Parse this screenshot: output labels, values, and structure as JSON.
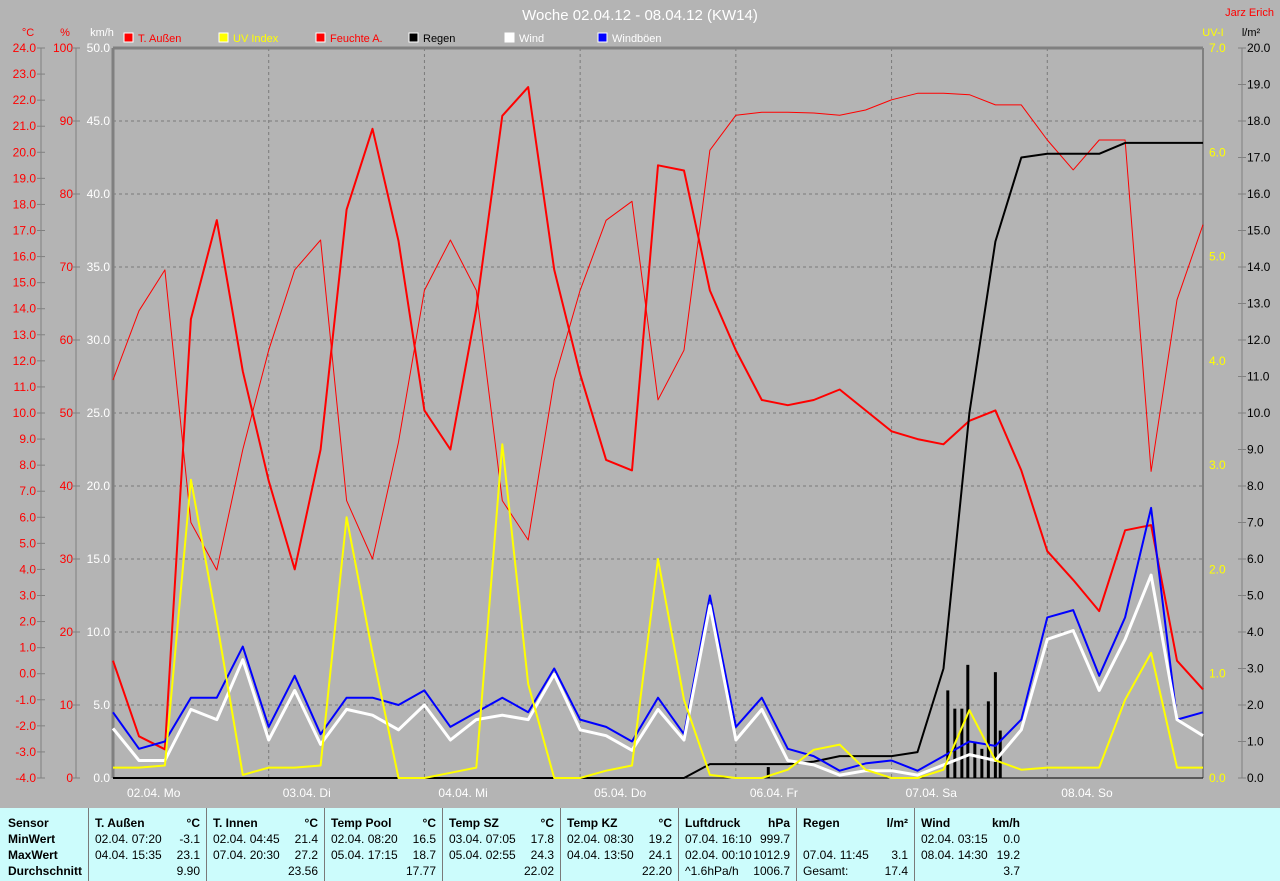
{
  "chart_data": {
    "type": "line",
    "title": "Woche 02.04.12 - 08.04.12 (KW14)",
    "author": "Jarz Erich",
    "grid": true,
    "legend_placement": "top",
    "axes": {
      "temp": {
        "unit": "°C",
        "range": [
          -4,
          24
        ],
        "step": 1,
        "side": "left",
        "color": "#ff0000"
      },
      "humidity": {
        "unit": "%",
        "range": [
          0,
          100
        ],
        "step": 10,
        "side": "left",
        "color": "#ff0000"
      },
      "wind": {
        "unit": "km/h",
        "range": [
          0,
          50
        ],
        "step": 5,
        "side": "left",
        "color": "#ffffff"
      },
      "uv": {
        "unit": "UV-I",
        "range": [
          0,
          7
        ],
        "step": 1,
        "side": "right",
        "color": "#ffff00"
      },
      "rain": {
        "unit": "l/m²",
        "range": [
          0,
          20
        ],
        "step": 1,
        "side": "right",
        "color": "#000000"
      }
    },
    "x_range": [
      "02.04. 00:00",
      "09.04. 00:00"
    ],
    "day_labels": [
      "02.04.  Mo",
      "03.04.  Di",
      "04.04.  Mi",
      "05.04.  Do",
      "06.04.  Fr",
      "07.04.  Sa",
      "08.04.  So"
    ],
    "x": [
      "02.04. 00:00",
      "02.04. 04:00",
      "02.04. 08:00",
      "02.04. 12:00",
      "02.04. 16:00",
      "02.04. 20:00",
      "03.04. 00:00",
      "03.04. 04:00",
      "03.04. 08:00",
      "03.04. 12:00",
      "03.04. 16:00",
      "03.04. 20:00",
      "04.04. 00:00",
      "04.04. 04:00",
      "04.04. 08:00",
      "04.04. 12:00",
      "04.04. 16:00",
      "04.04. 20:00",
      "05.04. 00:00",
      "05.04. 04:00",
      "05.04. 08:00",
      "05.04. 12:00",
      "05.04. 16:00",
      "05.04. 20:00",
      "06.04. 00:00",
      "06.04. 04:00",
      "06.04. 08:00",
      "06.04. 12:00",
      "06.04. 16:00",
      "06.04. 20:00",
      "07.04. 00:00",
      "07.04. 04:00",
      "07.04. 08:00",
      "07.04. 12:00",
      "07.04. 16:00",
      "07.04. 20:00",
      "08.04. 00:00",
      "08.04. 04:00",
      "08.04. 08:00",
      "08.04. 12:00",
      "08.04. 16:00",
      "08.04. 20:00",
      "09.04. 00:00"
    ],
    "series": [
      {
        "name": "Feuchte A.",
        "axis": "humidity",
        "color": "#ff0000",
        "width": 1,
        "values": [
          54.5,
          64,
          69.6,
          35,
          28.5,
          45,
          58.6,
          69.6,
          73.7,
          38,
          30,
          46,
          66.8,
          73.7,
          66.8,
          38,
          32.6,
          54.5,
          66.8,
          76.4,
          79,
          51.8,
          58.6,
          86,
          90.8,
          91.2,
          91.2,
          91.1,
          90.8,
          91.5,
          92.9,
          93.8,
          93.8,
          93.6,
          92.2,
          92.2,
          87.4,
          83.3,
          87.4,
          87.4,
          42,
          65.5,
          75.8
        ]
      },
      {
        "name": "T. Außen",
        "axis": "temp",
        "color": "#ff0000",
        "width": 2,
        "values": [
          0.5,
          -2.4,
          -2.9,
          13.6,
          17.4,
          11.6,
          7.4,
          4.0,
          8.6,
          17.8,
          20.9,
          16.6,
          10.1,
          8.6,
          14.0,
          21.4,
          22.5,
          15.5,
          11.5,
          8.2,
          7.8,
          19.5,
          19.3,
          14.7,
          12.4,
          10.5,
          10.3,
          10.5,
          10.9,
          10.1,
          9.3,
          9.0,
          8.8,
          9.7,
          10.1,
          7.8,
          4.7,
          3.6,
          2.4,
          5.5,
          5.7,
          0.5,
          -0.6
        ]
      },
      {
        "name": "Regen",
        "axis": "rain",
        "color": "#000000",
        "width": 2,
        "values": [
          0,
          0,
          0,
          0,
          0,
          0,
          0,
          0,
          0,
          0,
          0,
          0,
          0,
          0,
          0,
          0,
          0,
          0,
          0,
          0,
          0,
          0,
          0,
          0.38,
          0.38,
          0.38,
          0.38,
          0.45,
          0.6,
          0.6,
          0.6,
          0.71,
          3.0,
          10.0,
          14.7,
          17.0,
          17.1,
          17.1,
          17.1,
          17.4,
          17.4,
          17.4,
          17.4
        ]
      },
      {
        "name": "Windböen",
        "axis": "wind",
        "color": "#0000ff",
        "width": 2,
        "values": [
          4.5,
          2.0,
          2.5,
          5.5,
          5.5,
          9.0,
          3.5,
          7.0,
          3.0,
          5.5,
          5.5,
          5.0,
          6.0,
          3.5,
          4.5,
          5.5,
          4.5,
          7.5,
          4.0,
          3.5,
          2.5,
          5.5,
          3.0,
          12.5,
          3.5,
          5.5,
          2.0,
          1.5,
          0.5,
          1.0,
          1.2,
          0.5,
          1.5,
          2.5,
          2.2,
          4.0,
          11.0,
          11.5,
          7.0,
          11.0,
          18.5,
          4.0,
          4.5
        ]
      },
      {
        "name": "Wind",
        "axis": "wind",
        "color": "#ffffff",
        "width": 3,
        "values": [
          3.4,
          1.2,
          1.2,
          4.7,
          4.0,
          8.1,
          2.6,
          6.0,
          2.3,
          4.7,
          4.3,
          3.3,
          5.0,
          2.6,
          4.0,
          4.3,
          4.0,
          7.1,
          3.3,
          2.9,
          1.9,
          4.7,
          2.6,
          11.8,
          2.6,
          4.7,
          1.2,
          0.9,
          0.2,
          0.5,
          0.5,
          0.2,
          0.9,
          1.6,
          1.2,
          3.3,
          9.5,
          10.1,
          6.0,
          9.5,
          13.9,
          4.0,
          2.9
        ]
      },
      {
        "name": "UV Index",
        "axis": "uv",
        "color": "#ffff00",
        "width": 2,
        "values": [
          0.1,
          0.1,
          0.12,
          2.86,
          1.5,
          0.03,
          0.1,
          0.1,
          0.12,
          2.5,
          1.2,
          0,
          0,
          0.05,
          0.1,
          3.2,
          0.9,
          0,
          0,
          0.07,
          0.12,
          2.1,
          0.75,
          0.03,
          0,
          0,
          0.08,
          0.27,
          0.32,
          0.08,
          0,
          0,
          0.08,
          0.65,
          0.17,
          0.08,
          0.1,
          0.1,
          0.1,
          0.75,
          1.2,
          0.1,
          0.1
        ]
      }
    ],
    "rain_bars": {
      "axis": "rain",
      "color": "#000000",
      "x": [
        "06.04. 05:00",
        "07.04. 08:40",
        "07.04. 09:45",
        "07.04. 10:50",
        "07.04. 11:45",
        "07.04. 12:50",
        "07.04. 13:55",
        "07.04. 14:55",
        "07.04. 16:00",
        "07.04. 16:45"
      ],
      "values": [
        0.3,
        2.4,
        1.9,
        1.9,
        3.1,
        1.0,
        0.8,
        2.1,
        2.9,
        1.3
      ]
    },
    "legend": [
      {
        "label": "T. Außen",
        "color": "#ff0000",
        "text_color": "#ff0000"
      },
      {
        "label": "UV Index",
        "color": "#ffff00",
        "text_color": "#ffff00"
      },
      {
        "label": "Feuchte A.",
        "color": "#ff0000",
        "text_color": "#ff0000"
      },
      {
        "label": "Regen",
        "color": "#000000",
        "text_color": "#000000"
      },
      {
        "label": "Wind",
        "color": "#ffffff",
        "text_color": "#ffffff"
      },
      {
        "label": "Windböen",
        "color": "#0000ff",
        "text_color": "#ffffff"
      }
    ]
  },
  "stats": {
    "labels": [
      "Sensor",
      "MinWert",
      "MaxWert",
      "Durchschnitt"
    ],
    "columns": [
      {
        "name": "T. Außen",
        "unit": "°C",
        "min": [
          "02.04.  07:20",
          "-3.1"
        ],
        "max": [
          "04.04.  15:35",
          "23.1"
        ],
        "avg": [
          "",
          "9.90"
        ]
      },
      {
        "name": "T. Innen",
        "unit": "°C",
        "min": [
          "02.04.  04:45",
          "21.4"
        ],
        "max": [
          "07.04.  20:30",
          "27.2"
        ],
        "avg": [
          "",
          "23.56"
        ]
      },
      {
        "name": "Temp Pool",
        "unit": "°C",
        "min": [
          "02.04.  08:20",
          "16.5"
        ],
        "max": [
          "05.04.  17:15",
          "18.7"
        ],
        "avg": [
          "",
          "17.77"
        ]
      },
      {
        "name": "Temp SZ",
        "unit": "°C",
        "min": [
          "03.04.  07:05",
          "17.8"
        ],
        "max": [
          "05.04.  02:55",
          "24.3"
        ],
        "avg": [
          "",
          "22.02"
        ]
      },
      {
        "name": "Temp KZ",
        "unit": "°C",
        "min": [
          "02.04.  08:30",
          "19.2"
        ],
        "max": [
          "04.04.  13:50",
          "24.1"
        ],
        "avg": [
          "",
          "22.20"
        ]
      },
      {
        "name": "Luftdruck",
        "unit": "hPa",
        "min": [
          "07.04.  16:10",
          "999.7"
        ],
        "max": [
          "02.04.  00:10",
          "1012.9"
        ],
        "avg": [
          "^1.6hPa/h",
          "1006.7"
        ]
      },
      {
        "name": "Regen",
        "unit": "l/m²",
        "min": [
          "",
          ""
        ],
        "max": [
          "07.04.  11:45",
          "3.1"
        ],
        "avg": [
          "Gesamt:",
          "17.4"
        ]
      },
      {
        "name": "Wind",
        "unit": "km/h",
        "min": [
          "02.04.  03:15",
          "0.0"
        ],
        "max": [
          "08.04.  14:30",
          "19.2"
        ],
        "avg": [
          "",
          "3.7"
        ]
      }
    ]
  }
}
